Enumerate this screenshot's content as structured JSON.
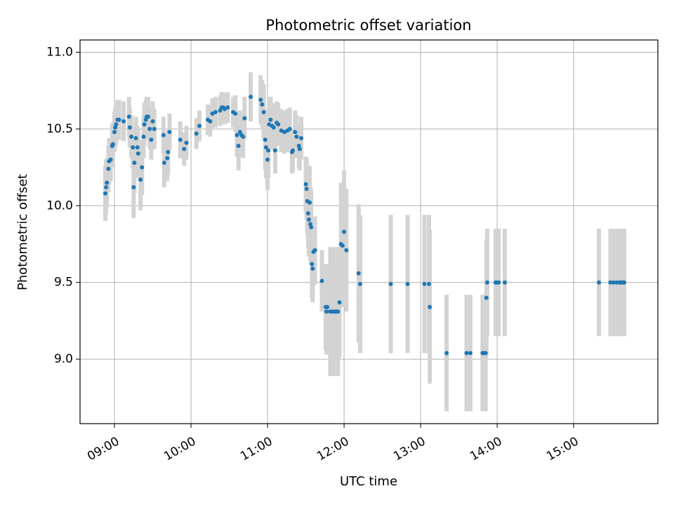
{
  "chart_data": {
    "type": "scatter",
    "title": "Photometric offset variation",
    "xlabel": "UTC time",
    "ylabel": "Photometric offset",
    "grid": true,
    "xlim_hours": [
      8.55,
      16.1
    ],
    "ylim": [
      8.58,
      11.08
    ],
    "x_ticks": [
      {
        "value": 9,
        "label": "09:00"
      },
      {
        "value": 10,
        "label": "10:00"
      },
      {
        "value": 11,
        "label": "11:00"
      },
      {
        "value": 12,
        "label": "12:00"
      },
      {
        "value": 13,
        "label": "13:00"
      },
      {
        "value": 14,
        "label": "14:00"
      },
      {
        "value": 15,
        "label": "15:00"
      }
    ],
    "y_ticks": [
      {
        "value": 9.0,
        "label": "9.0"
      },
      {
        "value": 9.5,
        "label": "9.5"
      },
      {
        "value": 10.0,
        "label": "10.0"
      },
      {
        "value": 10.5,
        "label": "10.5"
      },
      {
        "value": 11.0,
        "label": "11.0"
      }
    ],
    "marker_color": "#1f77b4",
    "errorbar_color": "#d3d3d3",
    "series": [
      {
        "name": "offset",
        "points": [
          [
            8.88,
            10.08,
            0.18
          ],
          [
            8.89,
            10.12,
            0.18
          ],
          [
            8.9,
            10.15,
            0.16
          ],
          [
            8.92,
            10.24,
            0.15
          ],
          [
            8.93,
            10.29,
            0.15
          ],
          [
            8.95,
            10.3,
            0.14
          ],
          [
            8.97,
            10.39,
            0.14
          ],
          [
            8.98,
            10.4,
            0.14
          ],
          [
            9.0,
            10.48,
            0.13
          ],
          [
            9.01,
            10.51,
            0.13
          ],
          [
            9.02,
            10.53,
            0.13
          ],
          [
            9.04,
            10.56,
            0.13
          ],
          [
            9.06,
            10.56,
            0.13
          ],
          [
            9.12,
            10.55,
            0.13
          ],
          [
            9.19,
            10.58,
            0.13
          ],
          [
            9.2,
            10.51,
            0.13
          ],
          [
            9.22,
            10.45,
            0.14
          ],
          [
            9.24,
            10.38,
            0.14
          ],
          [
            9.25,
            10.12,
            0.2
          ],
          [
            9.26,
            10.28,
            0.2
          ],
          [
            9.28,
            10.44,
            0.14
          ],
          [
            9.3,
            10.38,
            0.14
          ],
          [
            9.31,
            10.34,
            0.16
          ],
          [
            9.34,
            10.17,
            0.2
          ],
          [
            9.36,
            10.25,
            0.18
          ],
          [
            9.38,
            10.45,
            0.14
          ],
          [
            9.39,
            10.53,
            0.14
          ],
          [
            9.41,
            10.56,
            0.13
          ],
          [
            9.42,
            10.58,
            0.13
          ],
          [
            9.44,
            10.58,
            0.13
          ],
          [
            9.46,
            10.5,
            0.13
          ],
          [
            9.48,
            10.43,
            0.13
          ],
          [
            9.5,
            10.55,
            0.13
          ],
          [
            9.52,
            10.5,
            0.13
          ],
          [
            9.64,
            10.46,
            0.12
          ],
          [
            9.65,
            10.28,
            0.16
          ],
          [
            9.69,
            10.31,
            0.15
          ],
          [
            9.7,
            10.35,
            0.15
          ],
          [
            9.72,
            10.48,
            0.12
          ],
          [
            9.86,
            10.43,
            0.12
          ],
          [
            9.91,
            10.37,
            0.11
          ],
          [
            9.94,
            10.41,
            0.11
          ],
          [
            10.07,
            10.47,
            0.1
          ],
          [
            10.11,
            10.52,
            0.1
          ],
          [
            10.22,
            10.56,
            0.1
          ],
          [
            10.25,
            10.55,
            0.1
          ],
          [
            10.28,
            10.6,
            0.1
          ],
          [
            10.32,
            10.61,
            0.1
          ],
          [
            10.38,
            10.62,
            0.1
          ],
          [
            10.4,
            10.64,
            0.1
          ],
          [
            10.42,
            10.64,
            0.1
          ],
          [
            10.44,
            10.63,
            0.1
          ],
          [
            10.48,
            10.64,
            0.1
          ],
          [
            10.55,
            10.61,
            0.1
          ],
          [
            10.58,
            10.6,
            0.12
          ],
          [
            10.6,
            10.46,
            0.14
          ],
          [
            10.62,
            10.39,
            0.16
          ],
          [
            10.64,
            10.48,
            0.14
          ],
          [
            10.66,
            10.46,
            0.14
          ],
          [
            10.68,
            10.45,
            0.14
          ],
          [
            10.7,
            10.57,
            0.14
          ],
          [
            10.78,
            10.71,
            0.16
          ],
          [
            10.91,
            10.69,
            0.16
          ],
          [
            10.93,
            10.66,
            0.16
          ],
          [
            10.95,
            10.61,
            0.18
          ],
          [
            10.97,
            10.43,
            0.2
          ],
          [
            10.98,
            10.38,
            0.2
          ],
          [
            11.0,
            10.3,
            0.2
          ],
          [
            11.01,
            10.36,
            0.18
          ],
          [
            11.02,
            10.53,
            0.16
          ],
          [
            11.04,
            10.56,
            0.15
          ],
          [
            11.06,
            10.52,
            0.15
          ],
          [
            11.08,
            10.51,
            0.15
          ],
          [
            11.1,
            10.36,
            0.15
          ],
          [
            11.12,
            10.54,
            0.14
          ],
          [
            11.14,
            10.53,
            0.14
          ],
          [
            11.18,
            10.49,
            0.14
          ],
          [
            11.22,
            10.48,
            0.14
          ],
          [
            11.26,
            10.49,
            0.14
          ],
          [
            11.29,
            10.5,
            0.14
          ],
          [
            11.32,
            10.35,
            0.14
          ],
          [
            11.33,
            10.36,
            0.14
          ],
          [
            11.36,
            10.48,
            0.14
          ],
          [
            11.38,
            10.45,
            0.14
          ],
          [
            11.41,
            10.39,
            0.14
          ],
          [
            11.42,
            10.37,
            0.14
          ],
          [
            11.44,
            10.44,
            0.14
          ],
          [
            11.5,
            10.14,
            0.18
          ],
          [
            11.51,
            10.11,
            0.2
          ],
          [
            11.52,
            10.03,
            0.22
          ],
          [
            11.53,
            9.95,
            0.22
          ],
          [
            11.54,
            9.91,
            0.24
          ],
          [
            11.55,
            10.02,
            0.24
          ],
          [
            11.56,
            9.88,
            0.24
          ],
          [
            11.57,
            9.86,
            0.24
          ],
          [
            11.58,
            9.62,
            0.22
          ],
          [
            11.59,
            9.59,
            0.22
          ],
          [
            11.6,
            9.7,
            0.22
          ],
          [
            11.62,
            9.71,
            0.22
          ],
          [
            11.71,
            9.51,
            0.2
          ],
          [
            11.76,
            9.34,
            0.28
          ],
          [
            11.77,
            9.31,
            0.28
          ],
          [
            11.78,
            9.34,
            0.28
          ],
          [
            11.82,
            9.31,
            0.42
          ],
          [
            11.85,
            9.31,
            0.42
          ],
          [
            11.88,
            9.31,
            0.42
          ],
          [
            11.9,
            9.31,
            0.42
          ],
          [
            11.92,
            9.31,
            0.42
          ],
          [
            11.94,
            9.37,
            0.36
          ],
          [
            11.96,
            9.75,
            0.4
          ],
          [
            11.98,
            9.74,
            0.4
          ],
          [
            12.0,
            9.83,
            0.4
          ],
          [
            12.03,
            9.71,
            0.4
          ],
          [
            12.19,
            9.56,
            0.45
          ],
          [
            12.21,
            9.49,
            0.45
          ],
          [
            12.61,
            9.49,
            0.45
          ],
          [
            12.83,
            9.49,
            0.45
          ],
          [
            13.05,
            9.49,
            0.45
          ],
          [
            13.11,
            9.49,
            0.45
          ],
          [
            13.12,
            9.34,
            0.5
          ],
          [
            13.34,
            9.04,
            0.38
          ],
          [
            13.6,
            9.04,
            0.38
          ],
          [
            13.65,
            9.04,
            0.38
          ],
          [
            13.81,
            9.04,
            0.38
          ],
          [
            13.83,
            9.04,
            0.38
          ],
          [
            13.85,
            9.04,
            0.38
          ],
          [
            13.86,
            9.4,
            0.38
          ],
          [
            13.87,
            9.5,
            0.35
          ],
          [
            13.98,
            9.5,
            0.35
          ],
          [
            14.0,
            9.5,
            0.35
          ],
          [
            14.02,
            9.5,
            0.35
          ],
          [
            14.1,
            9.5,
            0.35
          ],
          [
            15.33,
            9.5,
            0.35
          ],
          [
            15.48,
            9.5,
            0.35
          ],
          [
            15.52,
            9.5,
            0.35
          ],
          [
            15.56,
            9.5,
            0.35
          ],
          [
            15.6,
            9.5,
            0.35
          ],
          [
            15.62,
            9.5,
            0.35
          ],
          [
            15.64,
            9.5,
            0.35
          ],
          [
            15.66,
            9.5,
            0.35
          ]
        ]
      }
    ]
  }
}
